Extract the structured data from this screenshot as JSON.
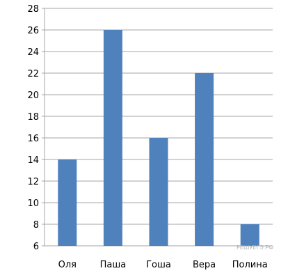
{
  "chart_data": {
    "type": "bar",
    "categories": [
      "Оля",
      "Паша",
      "Гоша",
      "Вера",
      "Полина"
    ],
    "values": [
      14,
      26,
      16,
      22,
      8
    ],
    "ylim": [
      6,
      28
    ],
    "yticks": [
      6,
      8,
      10,
      12,
      14,
      16,
      18,
      20,
      22,
      24,
      26,
      28
    ],
    "grid": true,
    "bar_color": "#4f81bd",
    "grid_color": "#a6a6a6"
  },
  "watermark": "РЕШУЕГЭ.РФ"
}
